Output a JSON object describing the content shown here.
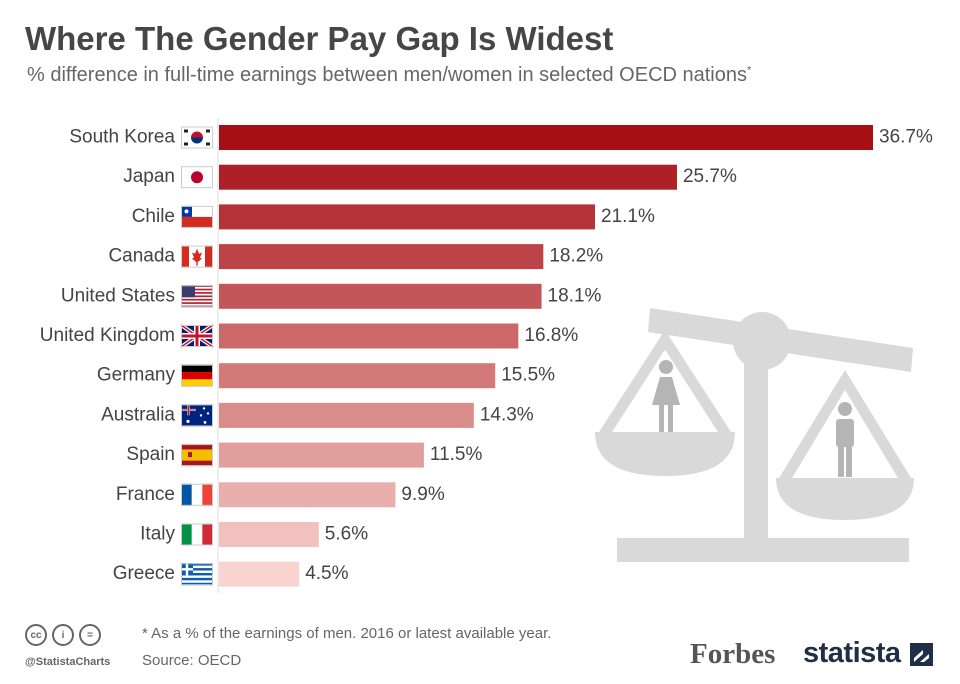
{
  "header": {
    "title": "Where The Gender Pay Gap Is Widest",
    "subtitle": "% difference in full-time earnings between men/women in selected OECD nations",
    "subtitle_mark": "*"
  },
  "chart_data": {
    "type": "bar",
    "orientation": "horizontal",
    "title": "Where The Gender Pay Gap Is Widest",
    "subtitle": "% difference in full-time earnings between men/women in selected OECD nations*",
    "categories": [
      "South Korea",
      "Japan",
      "Chile",
      "Canada",
      "United States",
      "United Kingdom",
      "Germany",
      "Australia",
      "Spain",
      "France",
      "Italy",
      "Greece"
    ],
    "values": [
      36.7,
      25.7,
      21.1,
      18.2,
      18.1,
      16.8,
      15.5,
      14.3,
      11.5,
      9.9,
      5.6,
      4.5
    ],
    "value_labels": [
      "36.7%",
      "25.7%",
      "21.1%",
      "18.2%",
      "18.1%",
      "16.8%",
      "15.5%",
      "14.3%",
      "11.5%",
      "9.9%",
      "5.6%",
      "4.5%"
    ],
    "xlim": [
      0,
      36.7
    ],
    "grid": false,
    "legend": "none",
    "bar_color_darkest": "#a50f15",
    "bar_color_lightest": "#f8d3cf"
  },
  "icons": {
    "flags": [
      "south-korea-flag-icon",
      "japan-flag-icon",
      "chile-flag-icon",
      "canada-flag-icon",
      "united-states-flag-icon",
      "united-kingdom-flag-icon",
      "germany-flag-icon",
      "australia-flag-icon",
      "spain-flag-icon",
      "france-flag-icon",
      "italy-flag-icon",
      "greece-flag-icon"
    ],
    "illustration": "balance-scale-icon"
  },
  "footer": {
    "note": "* As a % of the earnings of men. 2016 or latest available year.",
    "source": "Source: OECD",
    "handle": "@StatistaCharts",
    "cc_labels": [
      "cc",
      "i",
      "="
    ]
  },
  "brands": {
    "forbes": "Forbes",
    "statista": "statista"
  }
}
